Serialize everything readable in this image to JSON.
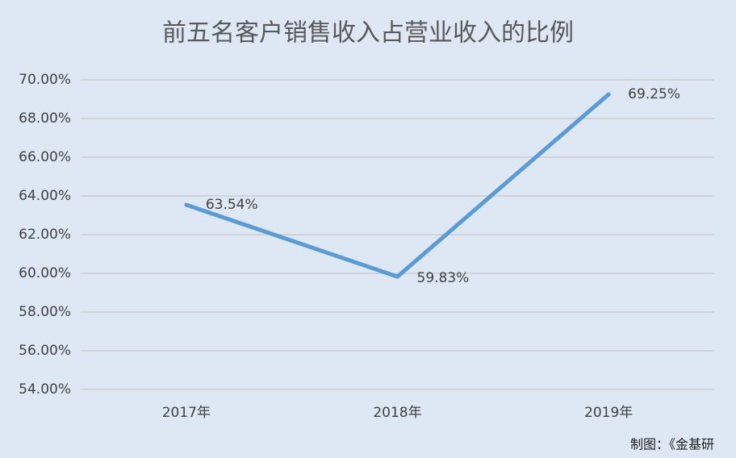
{
  "chart_data": {
    "type": "line",
    "title": "前五名客户销售收入占营业收入的比例",
    "categories": [
      "2017年",
      "2018年",
      "2019年"
    ],
    "series": [
      {
        "color": "#5b9bd5",
        "values": [
          63.54,
          59.83,
          69.25
        ],
        "value_labels": [
          "63.54%",
          "59.83%",
          "69.25%"
        ]
      }
    ],
    "ylim": [
      54,
      70
    ],
    "yticks": [
      {
        "value": 54,
        "label": "54.00%"
      },
      {
        "value": 56,
        "label": "56.00%"
      },
      {
        "value": 58,
        "label": "58.00%"
      },
      {
        "value": 60,
        "label": "60.00%"
      },
      {
        "value": 62,
        "label": "62.00%"
      },
      {
        "value": 64,
        "label": "64.00%"
      },
      {
        "value": 66,
        "label": "66.00%"
      },
      {
        "value": 68,
        "label": "68.00%"
      },
      {
        "value": 70,
        "label": "70.00%"
      }
    ],
    "grid": true,
    "source": "制图：《金基研"
  }
}
